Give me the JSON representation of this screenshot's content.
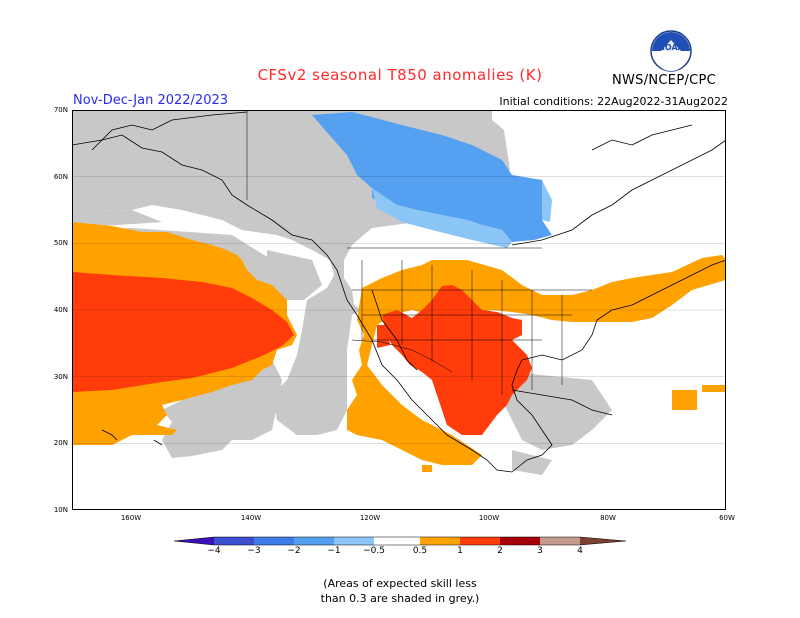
{
  "title": "CFSv2 seasonal T850 anomalies (K)",
  "season": "Nov-Dec-Jan 2022/2023",
  "initial_conditions": "Initial conditions: 22Aug2022-31Aug2022",
  "agency": "NWS/NCEP/CPC",
  "logo_icon": "noaa-logo-icon",
  "lat_labels": [
    "70N",
    "60N",
    "50N",
    "40N",
    "30N",
    "20N",
    "10N"
  ],
  "lon_labels": [
    "160W",
    "140W",
    "120W",
    "100W",
    "80W",
    "60W"
  ],
  "colorbar": {
    "tick_labels": [
      "−4",
      "−3",
      "−2",
      "−1",
      "−0.5",
      "0.5",
      "1",
      "2",
      "3",
      "4"
    ],
    "colors": [
      "#3a10b8",
      "#3a4ecf",
      "#3f7ee8",
      "#55a0f0",
      "#8cc6f7",
      "#ffffff",
      "#ffa200",
      "#ff3c0a",
      "#a8000a",
      "#c49a90",
      "#7a4030"
    ]
  },
  "shading": {
    "low_skill": "#c8c8c8",
    "cold_weak": "#8cc6f7",
    "cold_mod": "#55a0f0",
    "warm_weak": "#ffa200",
    "warm_mod": "#ff3c0a"
  },
  "note_lines": [
    "(Areas of expected skill less",
    "than 0.3 are shaded in grey.)"
  ]
}
